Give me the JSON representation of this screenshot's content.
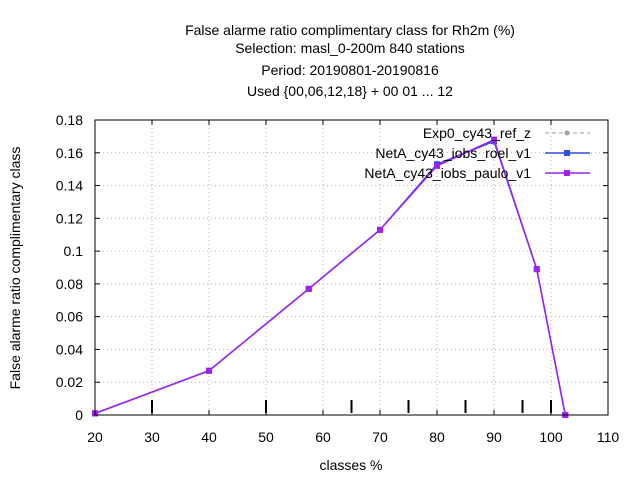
{
  "chart_data": {
    "type": "line",
    "title_lines": [
      "False alarme ratio complimentary class  for Rh2m (%)",
      "Selection: masl_0-200m    840 stations",
      "Period: 20190801-20190816",
      "Used {00,06,12,18} + 00 01 ... 12"
    ],
    "xlabel": "classes %",
    "ylabel": "False alarme ratio complimentary class",
    "xlim": [
      20,
      110
    ],
    "ylim": [
      0,
      0.18
    ],
    "xticks": [
      20,
      30,
      40,
      50,
      60,
      70,
      80,
      90,
      100,
      110
    ],
    "xtick_labels": [
      "20",
      "30",
      "40",
      "50",
      "60",
      "70",
      "80",
      "90",
      "100",
      "110"
    ],
    "yticks": [
      0,
      0.02,
      0.04,
      0.06,
      0.08,
      0.1,
      0.12,
      0.14,
      0.16,
      0.18
    ],
    "ytick_labels": [
      "0",
      "0.02",
      "0.04",
      "0.06",
      "0.08",
      "0.1",
      "0.12",
      "0.14",
      "0.16",
      "0.18"
    ],
    "grid": true,
    "legend_position": "top-right",
    "class_markers_x": [
      30,
      50,
      65,
      75,
      85,
      95,
      100
    ],
    "series": [
      {
        "name": "Exp0_cy43_ref_z",
        "color": "#a0a0a0",
        "style": "dashed",
        "marker": "circle",
        "x": [
          20,
          40,
          57.5,
          70,
          80,
          90,
          97.5,
          102.5
        ],
        "y": [
          0.001,
          0.027,
          0.077,
          0.113,
          0.153,
          0.167,
          0.089,
          0.0
        ]
      },
      {
        "name": "NetA_cy43_iobs_roel_v1",
        "color": "#3050d8",
        "style": "solid",
        "marker": "square",
        "x": [
          20,
          40,
          57.5,
          70,
          80,
          90,
          97.5,
          102.5
        ],
        "y": [
          0.001,
          0.027,
          0.077,
          0.113,
          0.153,
          0.167,
          0.089,
          0.0
        ]
      },
      {
        "name": "NetA_cy43_iobs_paulo_v1",
        "color": "#a020f0",
        "style": "solid",
        "marker": "square",
        "x": [
          20,
          40,
          57.5,
          70,
          80,
          90,
          97.5,
          102.5
        ],
        "y": [
          0.001,
          0.027,
          0.077,
          0.113,
          0.152,
          0.168,
          0.089,
          0.0
        ]
      }
    ]
  }
}
